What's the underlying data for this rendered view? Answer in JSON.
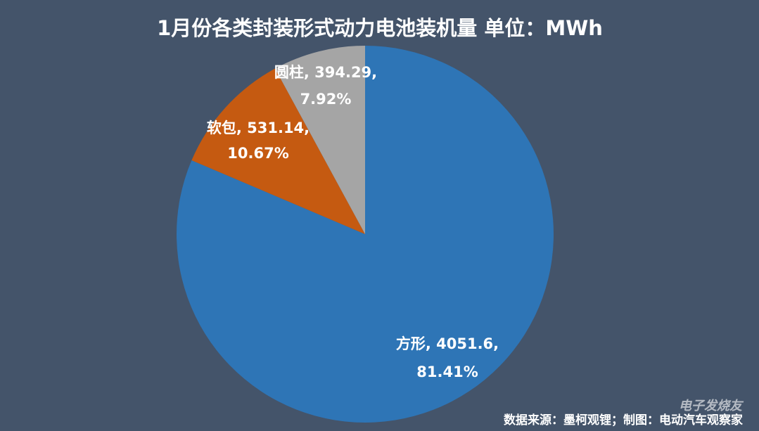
{
  "chart_data": {
    "type": "pie",
    "title": "1月份各类封装形式动力电池装机量  单位：MWh",
    "categories": [
      "方形",
      "软包",
      "圆柱"
    ],
    "values": [
      4051.6,
      531.14,
      394.29
    ],
    "colors": [
      "#2e75b6",
      "#c55a11",
      "#a5a5a5"
    ],
    "data_labels": [
      [
        "方形, 4051.6,",
        "81.41%"
      ],
      [
        "软包, 531.14,",
        "10.67%"
      ],
      [
        "圆柱, 394.29,",
        "7.92%"
      ]
    ],
    "source": "数据来源：墨柯观锂；制图：电动汽车观察家",
    "watermark": "电子发烧友"
  }
}
